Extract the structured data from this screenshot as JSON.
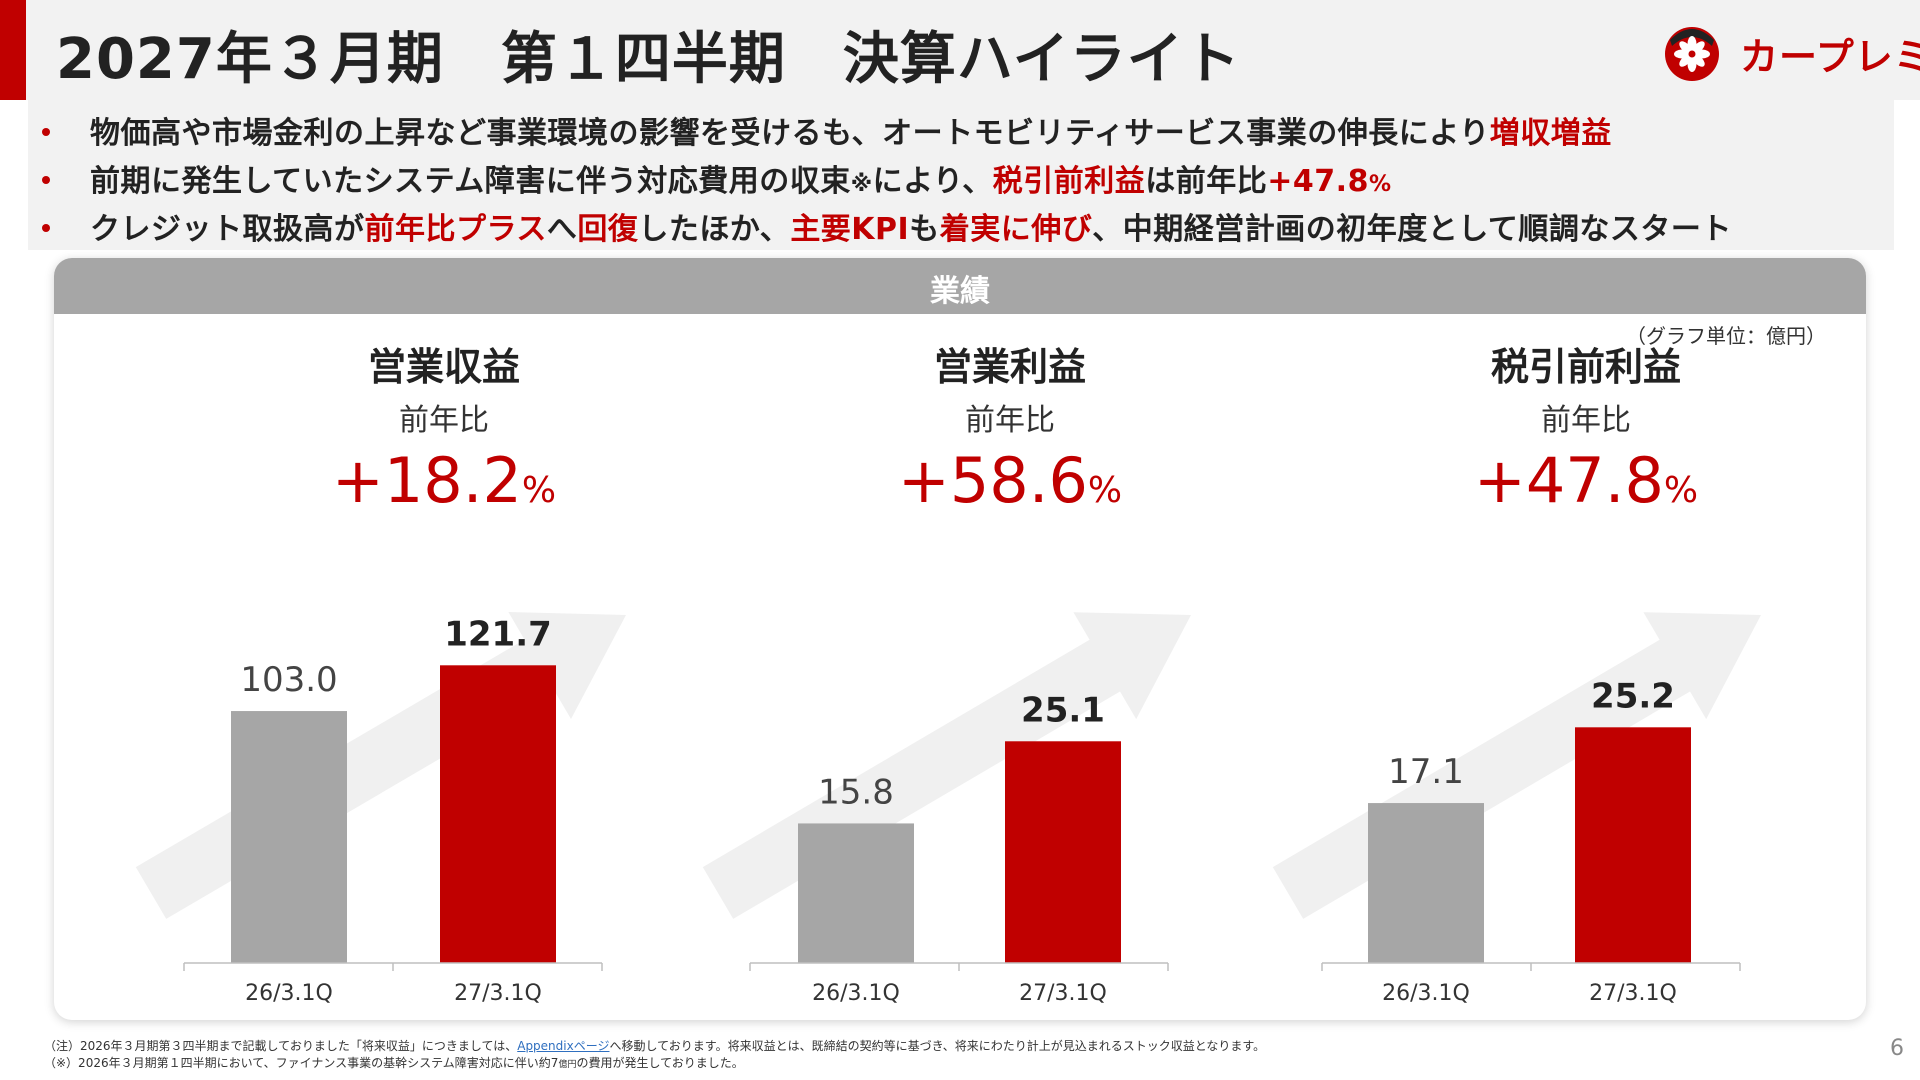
{
  "title": "2027年３月期　第１四半期　決算ハイライト",
  "logo": {
    "text": "カープレミア"
  },
  "bullets": [
    {
      "segments": [
        {
          "text": "物価高や市場金利の上昇など事業環境の影響を受けるも、オートモビリティサービス事業の伸長により",
          "style": "normal"
        },
        {
          "text": "増収増益",
          "style": "red"
        }
      ]
    },
    {
      "segments": [
        {
          "text": "前期に発生していたシステム障害に伴う対応費用の収束",
          "style": "normal"
        },
        {
          "text": "※",
          "style": "small"
        },
        {
          "text": "により、",
          "style": "normal"
        },
        {
          "text": "税引前利益",
          "style": "red"
        },
        {
          "text": "は前年比",
          "style": "normal"
        },
        {
          "text": "+47.8",
          "style": "red"
        },
        {
          "text": "%",
          "style": "red-small"
        }
      ]
    },
    {
      "segments": [
        {
          "text": "クレジット取扱高が",
          "style": "normal"
        },
        {
          "text": "前年比プラス",
          "style": "red"
        },
        {
          "text": "へ",
          "style": "normal"
        },
        {
          "text": "回復",
          "style": "red"
        },
        {
          "text": "したほか、",
          "style": "normal"
        },
        {
          "text": "主要KPI",
          "style": "red"
        },
        {
          "text": "も",
          "style": "normal"
        },
        {
          "text": "着実に伸び",
          "style": "red"
        },
        {
          "text": "、中期経営計画の初年度として順調なスタート",
          "style": "normal"
        }
      ]
    }
  ],
  "panel": {
    "title": "業績",
    "unit": "（グラフ単位：億円）"
  },
  "kpis": [
    {
      "name": "営業収益",
      "label": "前年比",
      "value": "+18.2",
      "unit": "%"
    },
    {
      "name": "営業利益",
      "label": "前年比",
      "value": "+58.6",
      "unit": "%"
    },
    {
      "name": "税引前利益",
      "label": "前年比",
      "value": "+47.8",
      "unit": "%"
    }
  ],
  "colors": {
    "accent": "#c00000",
    "prior": "#a6a6a6",
    "arrow": "#f0f0f0"
  },
  "chart_data": [
    {
      "type": "bar",
      "title": "営業収益",
      "categories": [
        "26/3.1Q",
        "27/3.1Q"
      ],
      "values": [
        103.0,
        121.7
      ],
      "value_labels": [
        "103.0",
        "121.7"
      ],
      "ylim": [
        0,
        130
      ]
    },
    {
      "type": "bar",
      "title": "営業利益",
      "categories": [
        "26/3.1Q",
        "27/3.1Q"
      ],
      "values": [
        15.8,
        25.1
      ],
      "value_labels": [
        "15.8",
        "25.1"
      ],
      "ylim": [
        0,
        36
      ]
    },
    {
      "type": "bar",
      "title": "税引前利益",
      "categories": [
        "26/3.1Q",
        "27/3.1Q"
      ],
      "values": [
        17.1,
        25.2
      ],
      "value_labels": [
        "17.1",
        "25.2"
      ],
      "ylim": [
        0,
        34
      ]
    }
  ],
  "footnotes": {
    "note1_prefix": "（注）2026年３月期第３四半期まで記載しておりました「将来収益」につきましては、",
    "note1_link": "Appendixページ",
    "note1_suffix": "へ移動しております。将来収益とは、既締結の契約等に基づき、将来にわたり計上が見込まれるストック収益となります。",
    "note2_prefix": "（※）2026年３月期第１四半期において、ファイナンス事業の基幹システム障害対応に伴い約7",
    "note2_unit": "億円",
    "note2_suffix": "の費用が発生しておりました。"
  },
  "page_number": "6"
}
